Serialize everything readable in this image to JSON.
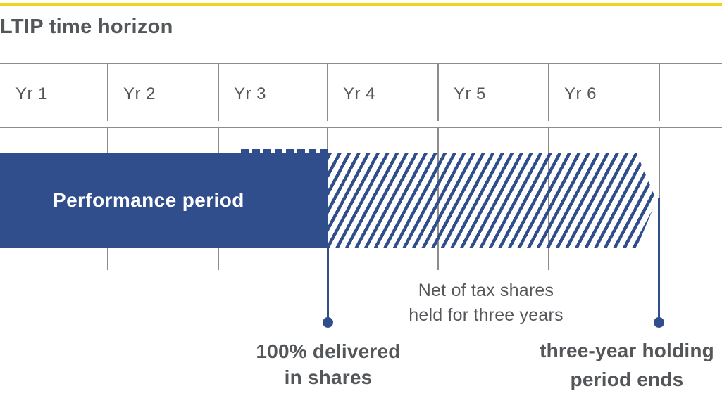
{
  "title": "LTIP time horizon",
  "timeline": {
    "years": [
      "Yr 1",
      "Yr 2",
      "Yr 3",
      "Yr 4",
      "Yr 5",
      "Yr 6"
    ],
    "performance_period": {
      "label": "Performance period",
      "start_year": 1,
      "end_year": 3,
      "style": "solid"
    },
    "holding_period": {
      "start_year": 4,
      "end_year": 6,
      "style": "diagonal-hatched",
      "end_shape": "arrow-point"
    }
  },
  "annotations": {
    "delivered": {
      "line1": "100% delivered",
      "line2": "in shares",
      "marker": "dot-at-end-of-year-3"
    },
    "net_of_tax": {
      "line1": "Net of tax shares",
      "line2": "held for three years"
    },
    "holding_ends": {
      "line1": "three-year holding",
      "line2": "period ends",
      "marker": "dot-at-end-of-year-6"
    }
  },
  "colors": {
    "accent_yellow": "#f0d41c",
    "navy": "#304d8c",
    "text_gray": "#54575a",
    "grid_gray": "#8c8c8c"
  }
}
